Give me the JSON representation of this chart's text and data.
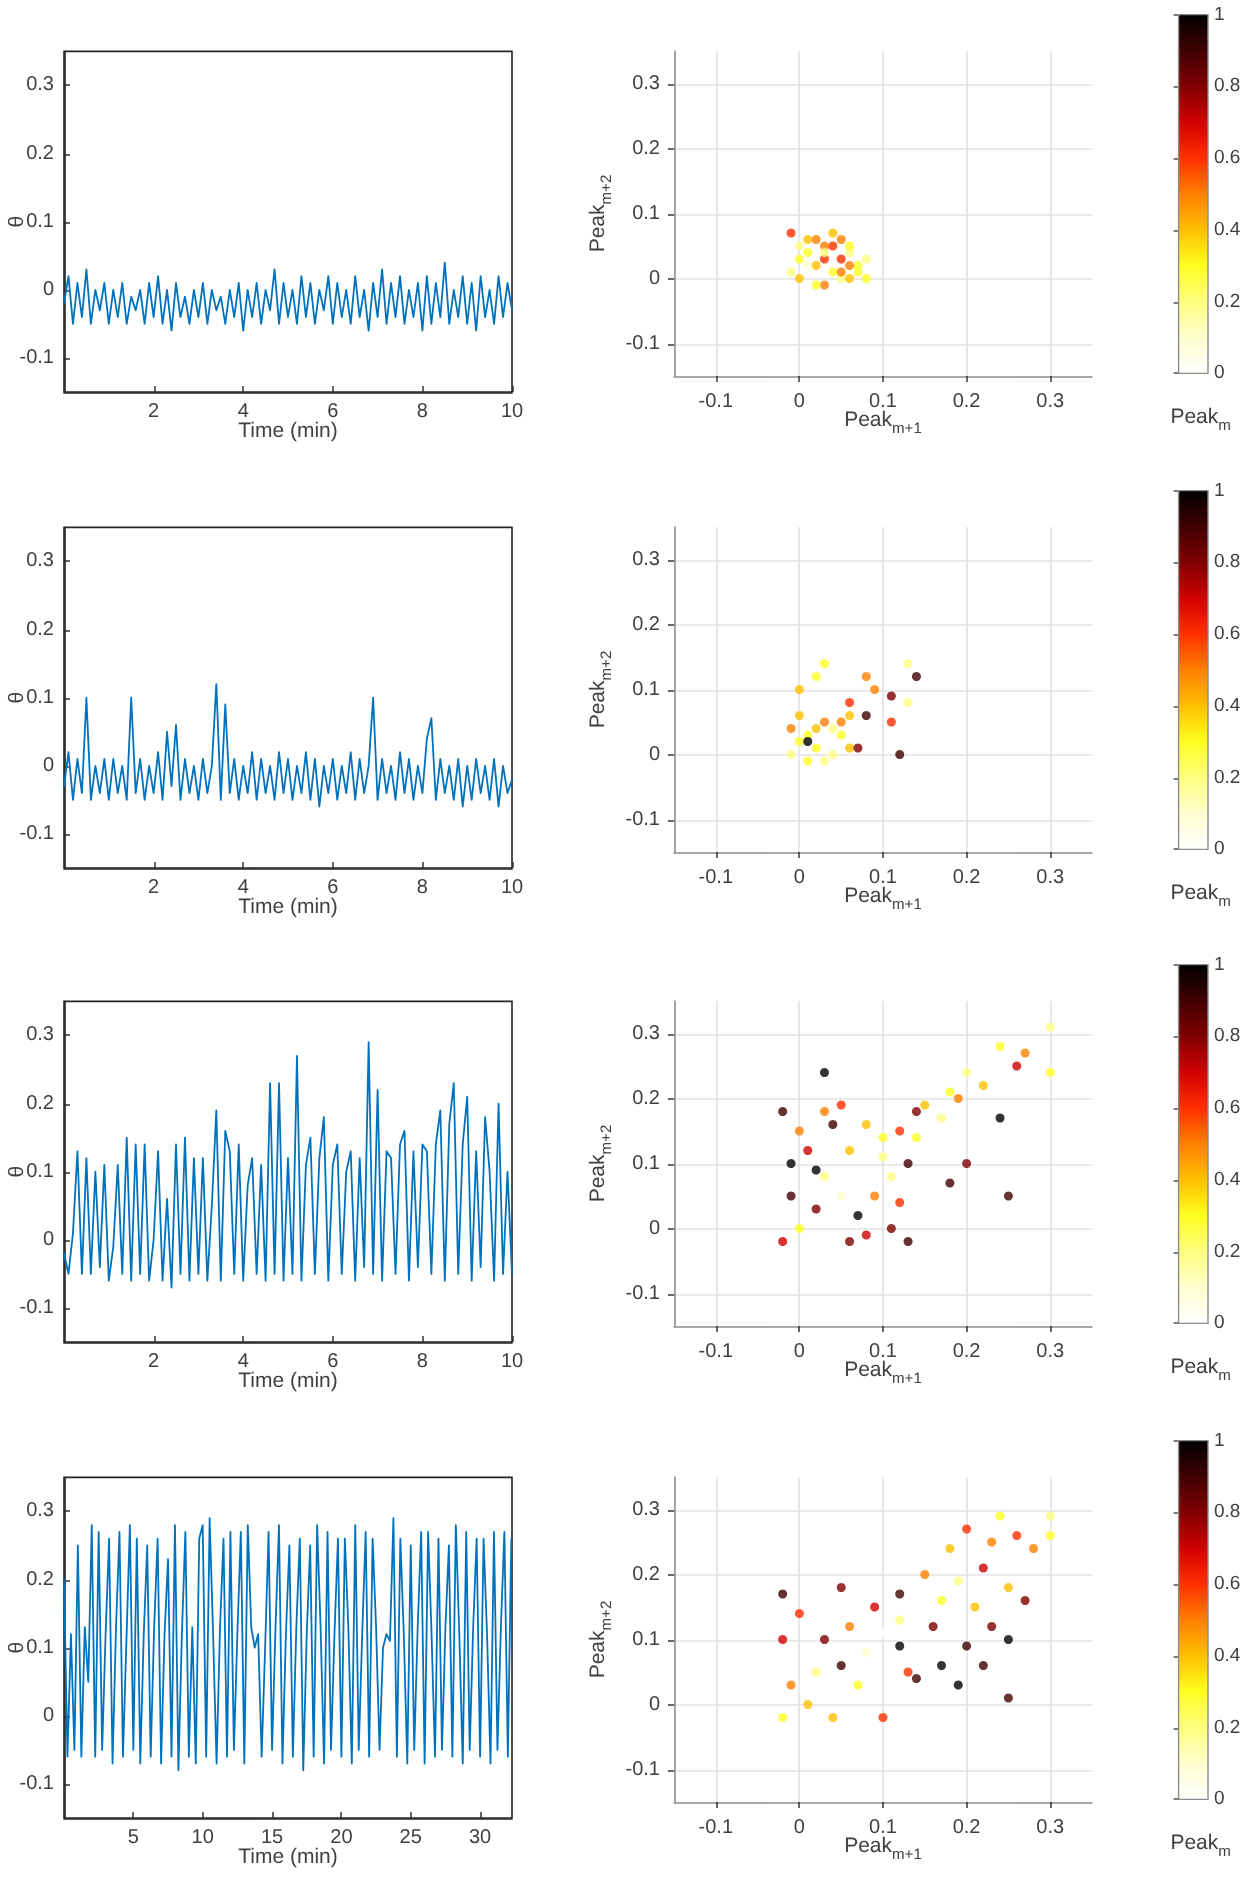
{
  "chart_data": [
    {
      "type": "line",
      "xlabel": "Time (min)",
      "ylabel": "θ",
      "color": "#0072bd",
      "xlim": [
        0,
        10
      ],
      "xticks": [
        2,
        4,
        6,
        8,
        10
      ],
      "ylim": [
        -0.15,
        0.35
      ],
      "yticks": [
        -0.1,
        0,
        0.1,
        0.2,
        0.3
      ],
      "x": [
        0,
        0.1,
        0.2,
        0.3,
        0.4,
        0.5,
        0.6,
        0.7,
        0.8,
        0.9,
        1,
        1.1,
        1.2,
        1.3,
        1.4,
        1.5,
        1.6,
        1.7,
        1.8,
        1.9,
        2,
        2.1,
        2.2,
        2.3,
        2.4,
        2.5,
        2.6,
        2.7,
        2.8,
        2.9,
        3,
        3.1,
        3.2,
        3.3,
        3.4,
        3.5,
        3.6,
        3.7,
        3.8,
        3.9,
        4,
        4.1,
        4.2,
        4.3,
        4.4,
        4.5,
        4.6,
        4.7,
        4.8,
        4.9,
        5,
        5.1,
        5.2,
        5.3,
        5.4,
        5.5,
        5.6,
        5.7,
        5.8,
        5.9,
        6,
        6.1,
        6.2,
        6.3,
        6.4,
        6.5,
        6.6,
        6.7,
        6.8,
        6.9,
        7,
        7.1,
        7.2,
        7.3,
        7.4,
        7.5,
        7.6,
        7.7,
        7.8,
        7.9,
        8,
        8.1,
        8.2,
        8.3,
        8.4,
        8.5,
        8.6,
        8.7,
        8.8,
        8.9,
        9,
        9.1,
        9.2,
        9.3,
        9.4,
        9.5,
        9.6,
        9.7,
        9.8,
        9.9,
        10
      ],
      "values": [
        -0.02,
        0.02,
        -0.05,
        0.01,
        -0.04,
        0.03,
        -0.05,
        0.0,
        -0.03,
        0.01,
        -0.05,
        0.0,
        -0.04,
        0.01,
        -0.05,
        -0.01,
        -0.03,
        0.0,
        -0.05,
        0.01,
        -0.04,
        0.02,
        -0.05,
        0.0,
        -0.06,
        0.01,
        -0.04,
        -0.01,
        -0.05,
        0.0,
        -0.04,
        0.01,
        -0.05,
        0.0,
        -0.03,
        -0.01,
        -0.05,
        0.0,
        -0.04,
        0.01,
        -0.06,
        0.0,
        -0.04,
        0.01,
        -0.05,
        0.0,
        -0.03,
        0.03,
        -0.05,
        0.01,
        -0.04,
        0.0,
        -0.05,
        0.02,
        -0.04,
        0.01,
        -0.05,
        0.0,
        -0.03,
        0.02,
        -0.05,
        0.01,
        -0.04,
        0.0,
        -0.05,
        0.02,
        -0.04,
        0.0,
        -0.06,
        0.01,
        -0.04,
        0.03,
        -0.05,
        0.01,
        -0.04,
        0.02,
        -0.05,
        0.0,
        -0.04,
        0.01,
        -0.06,
        0.02,
        -0.05,
        0.01,
        -0.04,
        0.04,
        -0.05,
        0.0,
        -0.04,
        0.02,
        -0.05,
        0.01,
        -0.06,
        0.02,
        -0.04,
        0.0,
        -0.05,
        0.02,
        -0.04,
        0.01,
        -0.03
      ]
    },
    {
      "type": "scatter",
      "xlabel": "Peak$_{m+1}$",
      "ylabel": "Peak$_{m+2}$",
      "clabel": "Peak$_{m}$",
      "marker": "circle",
      "grid": true,
      "xlim": [
        -0.15,
        0.35
      ],
      "xticks": [
        -0.1,
        0,
        0.1,
        0.2,
        0.3
      ],
      "ylim": [
        -0.15,
        0.35
      ],
      "yticks": [
        -0.1,
        0,
        0.1,
        0.2,
        0.3
      ],
      "clim": [
        0,
        1
      ],
      "cticks": [
        0,
        0.2,
        0.4,
        0.6,
        0.8,
        1
      ],
      "x": [
        0.0,
        0.05,
        0.02,
        0.07,
        -0.01,
        0.04,
        0.06,
        0.01,
        0.03,
        0.08,
        0.02,
        0.05,
        -0.01,
        0.04,
        0.06,
        0.0,
        0.03,
        0.07,
        0.01,
        0.05,
        0.02,
        0.04,
        0.06,
        0.0,
        0.03,
        0.08,
        0.01,
        0.05,
        0.03,
        0.06
      ],
      "values": [
        0.03,
        0.0,
        0.06,
        0.02,
        0.01,
        0.05,
        0.0,
        0.04,
        -0.01,
        0.03,
        0.02,
        0.06,
        0.07,
        0.01,
        0.04,
        0.0,
        0.05,
        0.01,
        0.02,
        0.03,
        -0.01,
        0.07,
        0.02,
        0.05,
        0.03,
        0.0,
        0.06,
        0.01,
        0.04,
        0.05
      ],
      "cvalues": [
        0.3,
        0.2,
        0.5,
        0.3,
        0.2,
        0.6,
        0.4,
        0.3,
        0.5,
        0.2,
        0.4,
        0.5,
        0.6,
        0.3,
        0.2,
        0.4,
        0.5,
        0.3,
        0.1,
        0.6,
        0.3,
        0.4,
        0.5,
        0.2,
        0.6,
        0.3,
        0.4,
        0.5,
        0.2,
        0.3
      ]
    },
    {
      "type": "line",
      "xlabel": "Time (min)",
      "ylabel": "θ",
      "color": "#0072bd",
      "xlim": [
        0,
        10
      ],
      "xticks": [
        2,
        4,
        6,
        8,
        10
      ],
      "ylim": [
        -0.15,
        0.35
      ],
      "yticks": [
        -0.1,
        0,
        0.1,
        0.2,
        0.3
      ],
      "x": [
        0,
        0.1,
        0.2,
        0.3,
        0.4,
        0.5,
        0.6,
        0.7,
        0.8,
        0.9,
        1,
        1.1,
        1.2,
        1.3,
        1.4,
        1.5,
        1.6,
        1.7,
        1.8,
        1.9,
        2,
        2.1,
        2.2,
        2.3,
        2.4,
        2.5,
        2.6,
        2.7,
        2.8,
        2.9,
        3,
        3.1,
        3.2,
        3.3,
        3.4,
        3.5,
        3.6,
        3.7,
        3.8,
        3.9,
        4,
        4.1,
        4.2,
        4.3,
        4.4,
        4.5,
        4.6,
        4.7,
        4.8,
        4.9,
        5,
        5.1,
        5.2,
        5.3,
        5.4,
        5.5,
        5.6,
        5.7,
        5.8,
        5.9,
        6,
        6.1,
        6.2,
        6.3,
        6.4,
        6.5,
        6.6,
        6.7,
        6.8,
        6.9,
        7,
        7.1,
        7.2,
        7.3,
        7.4,
        7.5,
        7.6,
        7.7,
        7.8,
        7.9,
        8,
        8.1,
        8.2,
        8.3,
        8.4,
        8.5,
        8.6,
        8.7,
        8.8,
        8.9,
        9,
        9.1,
        9.2,
        9.3,
        9.4,
        9.5,
        9.6,
        9.7,
        9.8,
        9.9,
        10
      ],
      "values": [
        -0.03,
        0.02,
        -0.05,
        0.01,
        -0.04,
        0.1,
        -0.05,
        0.0,
        -0.04,
        0.01,
        -0.05,
        0.01,
        -0.04,
        0.0,
        -0.05,
        0.1,
        -0.04,
        0.01,
        -0.05,
        0.0,
        -0.04,
        0.02,
        -0.05,
        0.05,
        -0.03,
        0.06,
        -0.05,
        0.01,
        -0.04,
        0.0,
        -0.05,
        0.01,
        -0.04,
        0.0,
        0.12,
        -0.05,
        0.09,
        -0.04,
        0.01,
        -0.05,
        0.0,
        -0.04,
        0.02,
        -0.05,
        0.01,
        -0.04,
        0.0,
        -0.05,
        0.02,
        -0.04,
        0.01,
        -0.05,
        0.0,
        -0.04,
        0.02,
        -0.05,
        0.01,
        -0.06,
        0.0,
        -0.04,
        0.01,
        -0.05,
        0.0,
        -0.04,
        0.02,
        -0.05,
        0.01,
        -0.04,
        0.0,
        0.1,
        -0.05,
        0.01,
        -0.04,
        0.0,
        -0.05,
        0.02,
        -0.04,
        0.01,
        -0.05,
        0.0,
        -0.04,
        0.04,
        0.07,
        -0.05,
        0.01,
        -0.04,
        0.0,
        -0.05,
        0.01,
        -0.06,
        0.0,
        -0.05,
        0.01,
        -0.04,
        0.0,
        -0.05,
        0.01,
        -0.06,
        0.0,
        -0.04,
        -0.02
      ]
    },
    {
      "type": "scatter",
      "xlabel": "Peak$_{m+1}$",
      "ylabel": "Peak$_{m+2}$",
      "clabel": "Peak$_{m}$",
      "marker": "circle",
      "grid": true,
      "xlim": [
        -0.15,
        0.35
      ],
      "xticks": [
        -0.1,
        0,
        0.1,
        0.2,
        0.3
      ],
      "ylim": [
        -0.15,
        0.35
      ],
      "yticks": [
        -0.1,
        0,
        0.1,
        0.2,
        0.3
      ],
      "clim": [
        0,
        1
      ],
      "cticks": [
        0,
        0.2,
        0.4,
        0.6,
        0.8,
        1
      ],
      "x": [
        0.0,
        0.04,
        0.02,
        0.05,
        -0.01,
        0.03,
        0.06,
        0.01,
        0.03,
        0.05,
        0.0,
        0.02,
        0.04,
        -0.01,
        0.06,
        0.01,
        0.03,
        0.13,
        0.0,
        0.08,
        0.11,
        0.02,
        0.13,
        0.06,
        0.09,
        0.14,
        0.12,
        0.01,
        0.07,
        0.11,
        0.08
      ],
      "values": [
        0.02,
        0.0,
        0.04,
        0.03,
        0.0,
        0.05,
        0.01,
        0.03,
        -0.01,
        0.05,
        0.06,
        0.01,
        0.04,
        0.04,
        0.06,
        -0.01,
        0.14,
        0.14,
        0.1,
        0.12,
        0.05,
        0.12,
        0.08,
        0.08,
        0.1,
        0.12,
        0.0,
        0.02,
        0.01,
        0.09,
        0.06
      ],
      "cvalues": [
        0.3,
        0.2,
        0.4,
        0.3,
        0.2,
        0.5,
        0.4,
        0.3,
        0.2,
        0.5,
        0.4,
        0.3,
        0.2,
        0.5,
        0.4,
        0.3,
        0.3,
        0.2,
        0.4,
        0.5,
        0.6,
        0.3,
        0.2,
        0.6,
        0.5,
        0.9,
        0.9,
        1,
        0.8,
        0.8,
        0.9
      ]
    },
    {
      "type": "line",
      "xlabel": "Time (min)",
      "ylabel": "θ",
      "color": "#0072bd",
      "xlim": [
        0,
        10
      ],
      "xticks": [
        2,
        4,
        6,
        8,
        10
      ],
      "ylim": [
        -0.15,
        0.35
      ],
      "yticks": [
        -0.1,
        0,
        0.1,
        0.2,
        0.3
      ],
      "x": [
        0,
        0.1,
        0.2,
        0.3,
        0.4,
        0.5,
        0.6,
        0.7,
        0.8,
        0.9,
        1,
        1.1,
        1.2,
        1.3,
        1.4,
        1.5,
        1.6,
        1.7,
        1.8,
        1.9,
        2,
        2.1,
        2.2,
        2.3,
        2.4,
        2.5,
        2.6,
        2.7,
        2.8,
        2.9,
        3,
        3.1,
        3.2,
        3.3,
        3.4,
        3.5,
        3.6,
        3.7,
        3.8,
        3.9,
        4,
        4.1,
        4.2,
        4.3,
        4.4,
        4.5,
        4.6,
        4.7,
        4.8,
        4.9,
        5,
        5.1,
        5.2,
        5.3,
        5.4,
        5.5,
        5.6,
        5.7,
        5.8,
        5.9,
        6,
        6.1,
        6.2,
        6.3,
        6.4,
        6.5,
        6.6,
        6.7,
        6.8,
        6.9,
        7,
        7.1,
        7.2,
        7.3,
        7.4,
        7.5,
        7.6,
        7.7,
        7.8,
        7.9,
        8,
        8.1,
        8.2,
        8.3,
        8.4,
        8.5,
        8.6,
        8.7,
        8.8,
        8.9,
        9,
        9.1,
        9.2,
        9.3,
        9.4,
        9.5,
        9.6,
        9.7,
        9.8,
        9.9,
        10
      ],
      "values": [
        -0.02,
        -0.05,
        0.01,
        0.13,
        -0.05,
        0.12,
        -0.05,
        0.1,
        -0.04,
        0.11,
        -0.06,
        -0.01,
        0.11,
        -0.05,
        0.15,
        -0.06,
        0.14,
        -0.05,
        0.14,
        -0.06,
        0.0,
        0.13,
        -0.06,
        0.06,
        -0.07,
        0.14,
        -0.05,
        0.15,
        -0.06,
        0.12,
        -0.05,
        0.12,
        -0.06,
        0.05,
        0.19,
        -0.06,
        0.16,
        0.13,
        -0.05,
        0.14,
        -0.06,
        0.08,
        0.12,
        -0.05,
        0.11,
        -0.06,
        0.23,
        -0.05,
        0.23,
        -0.06,
        0.12,
        -0.05,
        0.27,
        -0.06,
        0.11,
        0.15,
        -0.05,
        0.12,
        0.18,
        -0.06,
        0.11,
        0.14,
        -0.05,
        0.1,
        0.13,
        -0.06,
        0.12,
        -0.04,
        0.29,
        -0.05,
        0.22,
        -0.06,
        0.13,
        0.12,
        -0.05,
        0.14,
        0.16,
        -0.06,
        0.13,
        -0.04,
        0.14,
        0.13,
        -0.05,
        0.14,
        0.19,
        -0.06,
        0.17,
        0.23,
        -0.05,
        0.14,
        0.21,
        -0.06,
        0.13,
        -0.04,
        0.18,
        0.1,
        -0.06,
        0.2,
        -0.05,
        0.1,
        -0.05
      ]
    },
    {
      "type": "scatter",
      "xlabel": "Peak$_{m+1}$",
      "ylabel": "Peak$_{m+2}$",
      "clabel": "Peak$_{m}$",
      "marker": "circle",
      "grid": true,
      "xlim": [
        -0.15,
        0.35
      ],
      "xticks": [
        -0.1,
        0,
        0.1,
        0.2,
        0.3
      ],
      "ylim": [
        -0.15,
        0.35
      ],
      "yticks": [
        -0.1,
        0,
        0.1,
        0.2,
        0.3
      ],
      "clim": [
        0,
        1
      ],
      "cticks": [
        0,
        0.2,
        0.4,
        0.6,
        0.8,
        1
      ],
      "x": [
        -0.02,
        0.14,
        -0.02,
        0.13,
        0.0,
        0.12,
        0.0,
        0.11,
        -0.01,
        0.13,
        0.05,
        0.08,
        0.03,
        0.06,
        0.09,
        0.02,
        0.1,
        0.04,
        0.07,
        0.11,
        0.01,
        0.05,
        0.08,
        0.12,
        -0.01,
        0.03,
        0.1,
        0.06,
        0.14,
        0.02,
        0.15,
        0.18,
        0.2,
        0.22,
        0.24,
        0.27,
        0.3,
        0.3,
        0.26,
        0.19,
        0.17,
        0.25,
        0.24,
        0.18,
        0.2,
        0.03
      ],
      "values": [
        0.18,
        0.18,
        -0.02,
        -0.02,
        0.15,
        0.15,
        0.0,
        0.0,
        0.1,
        0.1,
        0.19,
        -0.01,
        0.08,
        0.12,
        0.05,
        0.03,
        0.14,
        0.16,
        0.02,
        0.08,
        0.12,
        0.05,
        0.16,
        0.04,
        0.05,
        0.18,
        0.11,
        -0.02,
        0.14,
        0.09,
        0.19,
        0.21,
        0.24,
        0.22,
        0.28,
        0.27,
        0.31,
        0.24,
        0.25,
        0.2,
        0.17,
        0.05,
        0.17,
        0.07,
        0.1,
        0.24
      ],
      "cvalues": [
        0.9,
        0.8,
        0.7,
        0.9,
        0.5,
        0.6,
        0.3,
        0.8,
        1,
        0.9,
        0.6,
        0.7,
        0.2,
        0.4,
        0.5,
        0.8,
        0.3,
        0.9,
        1,
        0.2,
        0.7,
        0.1,
        0.4,
        0.6,
        0.9,
        0.5,
        0.2,
        0.8,
        0.3,
        1,
        0.4,
        0.3,
        0.2,
        0.4,
        0.3,
        0.5,
        0.2,
        0.3,
        0.7,
        0.5,
        0.2,
        0.9,
        1,
        0.9,
        0.8,
        1
      ]
    },
    {
      "type": "line",
      "xlabel": "Time (min)",
      "ylabel": "θ",
      "color": "#0072bd",
      "xlim": [
        0,
        32.3
      ],
      "xticks": [
        5,
        10,
        15,
        20,
        25,
        30
      ],
      "ylim": [
        -0.15,
        0.35
      ],
      "yticks": [
        -0.1,
        0,
        0.1,
        0.2,
        0.3
      ],
      "x": [
        0,
        0.25,
        0.5,
        0.75,
        1,
        1.25,
        1.5,
        1.75,
        2,
        2.25,
        2.5,
        2.75,
        3,
        3.25,
        3.5,
        3.75,
        4,
        4.25,
        4.5,
        4.75,
        5,
        5.25,
        5.5,
        5.75,
        6,
        6.25,
        6.5,
        6.75,
        7,
        7.25,
        7.5,
        7.75,
        8,
        8.25,
        8.5,
        8.75,
        9,
        9.25,
        9.5,
        9.75,
        10,
        10.25,
        10.5,
        10.75,
        11,
        11.25,
        11.5,
        11.75,
        12,
        12.25,
        12.5,
        12.75,
        13,
        13.25,
        13.5,
        13.75,
        14,
        14.25,
        14.5,
        14.75,
        15,
        15.25,
        15.5,
        15.75,
        16,
        16.25,
        16.5,
        16.75,
        17,
        17.25,
        17.5,
        17.75,
        18,
        18.25,
        18.5,
        18.75,
        19,
        19.25,
        19.5,
        19.75,
        20,
        20.25,
        20.5,
        20.75,
        21,
        21.25,
        21.5,
        21.75,
        22,
        22.25,
        22.5,
        22.75,
        23,
        23.25,
        23.5,
        23.75,
        24,
        24.25,
        24.5,
        24.75,
        25,
        25.25,
        25.5,
        25.75,
        26,
        26.25,
        26.5,
        26.75,
        27,
        27.25,
        27.5,
        27.75,
        28,
        28.25,
        28.5,
        28.75,
        29,
        29.25,
        29.5,
        29.75,
        30,
        30.25,
        30.5,
        30.75,
        31,
        31.25,
        31.5,
        31.75,
        32,
        32.25
      ],
      "values": [
        0.2,
        -0.06,
        0.12,
        -0.05,
        0.25,
        -0.06,
        0.13,
        0.05,
        0.28,
        -0.06,
        0.27,
        -0.05,
        0.12,
        0.26,
        -0.07,
        0.13,
        0.27,
        -0.06,
        0.11,
        0.28,
        -0.05,
        0.26,
        -0.07,
        0.12,
        0.25,
        -0.06,
        0.13,
        0.26,
        -0.07,
        0.12,
        0.23,
        -0.06,
        0.28,
        -0.08,
        0.12,
        0.27,
        -0.06,
        0.13,
        -0.07,
        0.26,
        0.28,
        -0.06,
        0.29,
        0.12,
        -0.07,
        0.13,
        0.26,
        -0.06,
        0.27,
        -0.05,
        0.12,
        0.27,
        -0.07,
        0.28,
        0.13,
        0.1,
        0.12,
        -0.06,
        0.1,
        0.27,
        -0.05,
        0.13,
        0.28,
        -0.07,
        0.12,
        0.25,
        -0.06,
        0.13,
        0.26,
        -0.08,
        0.12,
        0.25,
        -0.06,
        0.28,
        0.13,
        -0.07,
        0.27,
        -0.05,
        0.12,
        0.26,
        -0.06,
        0.26,
        0.13,
        -0.07,
        0.28,
        -0.05,
        0.12,
        0.27,
        -0.06,
        0.26,
        0.13,
        -0.05,
        0.1,
        0.12,
        0.11,
        0.29,
        -0.06,
        0.26,
        0.12,
        -0.07,
        0.25,
        -0.05,
        0.13,
        0.27,
        -0.07,
        0.27,
        0.12,
        -0.06,
        0.26,
        -0.05,
        0.13,
        0.25,
        -0.06,
        0.28,
        0.12,
        -0.07,
        0.27,
        -0.05,
        0.13,
        0.26,
        -0.06,
        0.26,
        0.12,
        -0.07,
        0.27,
        -0.05,
        0.13,
        0.27,
        -0.06,
        0.26
      ]
    },
    {
      "type": "scatter",
      "xlabel": "Peak$_{m+1}$",
      "ylabel": "Peak$_{m+2}$",
      "clabel": "Peak$_{m}$",
      "marker": "circle",
      "grid": true,
      "xlim": [
        -0.15,
        0.35
      ],
      "xticks": [
        -0.1,
        0,
        0.1,
        0.2,
        0.3
      ],
      "ylim": [
        -0.15,
        0.35
      ],
      "yticks": [
        -0.1,
        0,
        0.1,
        0.2,
        0.3
      ],
      "clim": [
        0,
        1
      ],
      "cticks": [
        0,
        0.2,
        0.4,
        0.6,
        0.8,
        1
      ],
      "x": [
        -0.02,
        0.05,
        0.12,
        -0.02,
        -0.01,
        -0.02,
        0.04,
        0.1,
        0.0,
        0.03,
        0.02,
        0.06,
        0.08,
        0.1,
        0.07,
        0.12,
        0.01,
        0.05,
        0.09,
        0.13,
        0.14,
        0.17,
        0.2,
        0.23,
        0.25,
        0.25,
        0.16,
        0.19,
        0.22,
        0.12,
        0.27,
        0.15,
        0.18,
        0.2,
        0.24,
        0.3,
        0.28,
        0.25,
        0.22,
        0.17,
        0.26,
        0.21,
        0.3,
        0.19,
        0.23
      ],
      "values": [
        0.17,
        0.18,
        0.17,
        0.1,
        0.03,
        -0.02,
        -0.02,
        -0.02,
        0.14,
        0.1,
        0.05,
        0.12,
        0.08,
        0.11,
        0.03,
        0.13,
        0.0,
        0.06,
        0.15,
        0.05,
        0.04,
        0.06,
        0.09,
        0.12,
        0.1,
        0.01,
        0.12,
        0.03,
        0.06,
        0.09,
        0.16,
        0.2,
        0.24,
        0.27,
        0.29,
        0.29,
        0.24,
        0.18,
        0.21,
        0.16,
        0.26,
        0.15,
        0.26,
        0.19,
        0.25
      ],
      "cvalues": [
        0.9,
        0.8,
        0.9,
        0.7,
        0.5,
        0.3,
        0.4,
        0.6,
        0.6,
        0.8,
        0.2,
        0.5,
        0.1,
        0,
        0.3,
        0.2,
        0.4,
        0.9,
        0.7,
        0.6,
        0.9,
        1,
        0.9,
        0.8,
        1,
        0.9,
        0.8,
        1,
        0.9,
        1,
        0.8,
        0.5,
        0.4,
        0.6,
        0.3,
        0.2,
        0.5,
        0.4,
        0.7,
        0.3,
        0.6,
        0.4,
        0.3,
        0.2,
        0.5
      ]
    }
  ]
}
